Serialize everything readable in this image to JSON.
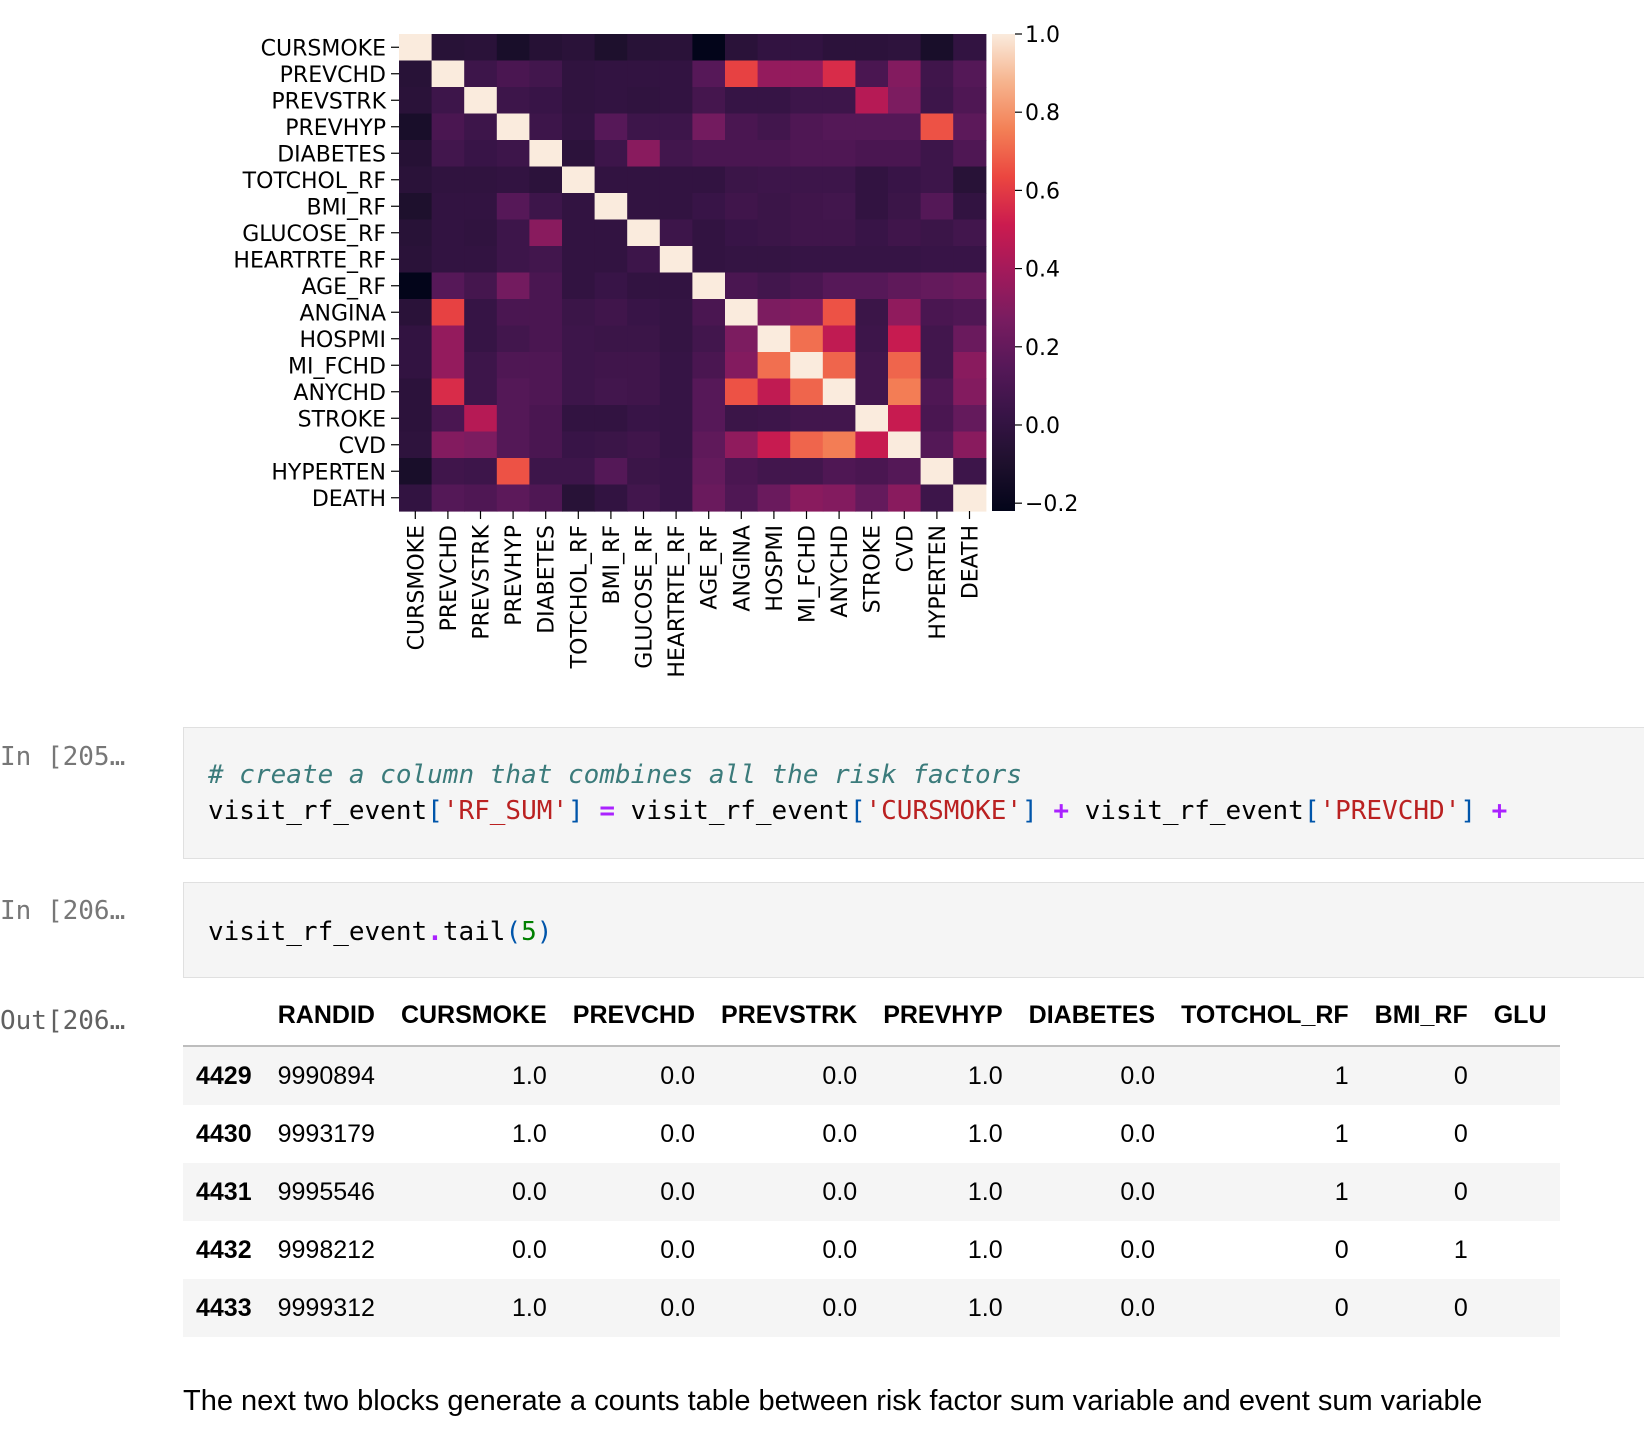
{
  "chart_data": {
    "type": "heatmap",
    "labels": [
      "CURSMOKE",
      "PREVCHD",
      "PREVSTRK",
      "PREVHYP",
      "DIABETES",
      "TOTCHOL_RF",
      "BMI_RF",
      "GLUCOSE_RF",
      "HEARTRTE_RF",
      "AGE_RF",
      "ANGINA",
      "HOSPMI",
      "MI_FCHD",
      "ANYCHD",
      "STROKE",
      "CVD",
      "HYPERTEN",
      "DEATH"
    ],
    "values": [
      [
        1.0,
        -0.05,
        -0.04,
        -0.12,
        -0.06,
        -0.04,
        -0.1,
        -0.05,
        -0.04,
        -0.22,
        -0.04,
        0.0,
        0.0,
        -0.03,
        -0.03,
        -0.02,
        -0.12,
        0.0
      ],
      [
        -0.05,
        1.0,
        0.05,
        0.1,
        0.07,
        -0.01,
        0.0,
        0.0,
        0.0,
        0.15,
        0.62,
        0.35,
        0.35,
        0.56,
        0.1,
        0.3,
        0.06,
        0.14
      ],
      [
        -0.04,
        0.05,
        1.0,
        0.05,
        0.03,
        -0.01,
        0.0,
        -0.01,
        0.0,
        0.08,
        0.02,
        0.02,
        0.05,
        0.05,
        0.45,
        0.28,
        0.05,
        0.12
      ],
      [
        -0.12,
        0.1,
        0.05,
        1.0,
        0.05,
        0.0,
        0.15,
        0.05,
        0.05,
        0.25,
        0.1,
        0.07,
        0.12,
        0.14,
        0.14,
        0.14,
        0.66,
        0.17
      ],
      [
        -0.06,
        0.07,
        0.03,
        0.05,
        1.0,
        -0.03,
        0.05,
        0.32,
        0.07,
        0.1,
        0.1,
        0.1,
        0.12,
        0.12,
        0.1,
        0.1,
        0.05,
        0.12
      ],
      [
        -0.04,
        -0.01,
        -0.01,
        0.0,
        -0.03,
        1.0,
        0.0,
        0.0,
        0.0,
        0.0,
        0.04,
        0.05,
        0.05,
        0.05,
        0.0,
        0.03,
        0.05,
        -0.05
      ],
      [
        -0.1,
        0.0,
        0.0,
        0.15,
        0.05,
        0.0,
        1.0,
        0.0,
        0.0,
        0.03,
        0.06,
        0.04,
        0.06,
        0.07,
        0.0,
        0.04,
        0.14,
        0.0
      ],
      [
        -0.05,
        0.0,
        -0.01,
        0.05,
        0.32,
        0.0,
        0.0,
        1.0,
        0.05,
        0.0,
        0.03,
        0.04,
        0.06,
        0.06,
        0.03,
        0.06,
        0.04,
        0.07
      ],
      [
        -0.04,
        0.0,
        0.0,
        0.05,
        0.07,
        0.0,
        0.0,
        0.05,
        1.0,
        0.0,
        0.01,
        0.01,
        0.02,
        0.02,
        0.02,
        0.02,
        0.03,
        0.03
      ],
      [
        -0.22,
        0.15,
        0.08,
        0.25,
        0.1,
        0.0,
        0.03,
        0.0,
        0.0,
        1.0,
        0.1,
        0.07,
        0.1,
        0.15,
        0.15,
        0.18,
        0.2,
        0.22
      ],
      [
        -0.04,
        0.62,
        0.02,
        0.1,
        0.1,
        0.04,
        0.06,
        0.03,
        0.01,
        0.1,
        1.0,
        0.28,
        0.3,
        0.66,
        0.04,
        0.34,
        0.1,
        0.12
      ],
      [
        0.0,
        0.35,
        0.02,
        0.07,
        0.1,
        0.05,
        0.04,
        0.04,
        0.01,
        0.07,
        0.28,
        1.0,
        0.72,
        0.48,
        0.05,
        0.5,
        0.07,
        0.22
      ],
      [
        0.0,
        0.35,
        0.05,
        0.12,
        0.12,
        0.05,
        0.06,
        0.06,
        0.02,
        0.1,
        0.3,
        0.72,
        1.0,
        0.7,
        0.07,
        0.7,
        0.07,
        0.32
      ],
      [
        -0.03,
        0.56,
        0.05,
        0.14,
        0.12,
        0.05,
        0.07,
        0.06,
        0.02,
        0.15,
        0.66,
        0.48,
        0.7,
        1.0,
        0.07,
        0.75,
        0.12,
        0.3
      ],
      [
        -0.03,
        0.1,
        0.45,
        0.14,
        0.1,
        0.0,
        0.0,
        0.03,
        0.02,
        0.15,
        0.04,
        0.05,
        0.07,
        0.07,
        1.0,
        0.5,
        0.1,
        0.2
      ],
      [
        -0.02,
        0.3,
        0.28,
        0.14,
        0.1,
        0.03,
        0.04,
        0.06,
        0.02,
        0.18,
        0.34,
        0.5,
        0.7,
        0.75,
        0.5,
        1.0,
        0.14,
        0.32
      ],
      [
        -0.12,
        0.06,
        0.05,
        0.66,
        0.05,
        0.05,
        0.14,
        0.04,
        0.03,
        0.2,
        0.1,
        0.07,
        0.07,
        0.12,
        0.1,
        0.14,
        1.0,
        0.05
      ],
      [
        0.0,
        0.14,
        0.12,
        0.17,
        0.12,
        -0.05,
        0.0,
        0.07,
        0.03,
        0.22,
        0.12,
        0.22,
        0.32,
        0.3,
        0.2,
        0.32,
        0.05,
        1.0
      ]
    ],
    "colorbar_ticks": [
      "1.0",
      "0.8",
      "0.6",
      "0.4",
      "0.2",
      "0.0",
      "−0.2"
    ],
    "vmin": -0.22,
    "vmax": 1.0
  },
  "cells": [
    {
      "prompt": "In [205…",
      "lines": [
        [
          {
            "t": "# create a column that combines all the risk factors",
            "c": "cm"
          }
        ],
        [
          {
            "t": "visit_rf_event"
          },
          {
            "t": "[",
            "c": "pn"
          },
          {
            "t": "'RF_SUM'",
            "c": "st"
          },
          {
            "t": "]",
            "c": "pn"
          },
          {
            "t": " "
          },
          {
            "t": "=",
            "c": "op"
          },
          {
            "t": " visit_rf_event"
          },
          {
            "t": "[",
            "c": "pn"
          },
          {
            "t": "'CURSMOKE'",
            "c": "st"
          },
          {
            "t": "]",
            "c": "pn"
          },
          {
            "t": " "
          },
          {
            "t": "+",
            "c": "op"
          },
          {
            "t": " visit_rf_event"
          },
          {
            "t": "[",
            "c": "pn"
          },
          {
            "t": "'PREVCHD'",
            "c": "st"
          },
          {
            "t": "]",
            "c": "pn"
          },
          {
            "t": " "
          },
          {
            "t": "+",
            "c": "op"
          }
        ]
      ]
    },
    {
      "prompt": "In [206…",
      "lines": [
        [
          {
            "t": "visit_rf_event"
          },
          {
            "t": ".",
            "c": "op"
          },
          {
            "t": "tail"
          },
          {
            "t": "(",
            "c": "pn"
          },
          {
            "t": "5",
            "c": "nm"
          },
          {
            "t": ")",
            "c": "pn"
          }
        ]
      ]
    }
  ],
  "output": {
    "prompt": "Out[206…",
    "columns": [
      "RANDID",
      "CURSMOKE",
      "PREVCHD",
      "PREVSTRK",
      "PREVHYP",
      "DIABETES",
      "TOTCHOL_RF",
      "BMI_RF",
      "GLU"
    ],
    "rows": [
      {
        "index": "4429",
        "cells": [
          "9990894",
          "1.0",
          "0.0",
          "0.0",
          "1.0",
          "0.0",
          "1",
          "0",
          ""
        ]
      },
      {
        "index": "4430",
        "cells": [
          "9993179",
          "1.0",
          "0.0",
          "0.0",
          "1.0",
          "0.0",
          "1",
          "0",
          ""
        ]
      },
      {
        "index": "4431",
        "cells": [
          "9995546",
          "0.0",
          "0.0",
          "0.0",
          "1.0",
          "0.0",
          "1",
          "0",
          ""
        ]
      },
      {
        "index": "4432",
        "cells": [
          "9998212",
          "0.0",
          "0.0",
          "0.0",
          "1.0",
          "0.0",
          "0",
          "1",
          ""
        ]
      },
      {
        "index": "4433",
        "cells": [
          "9999312",
          "1.0",
          "0.0",
          "0.0",
          "1.0",
          "0.0",
          "0",
          "0",
          ""
        ]
      }
    ]
  },
  "markdown": "The next two blocks generate a counts table between risk factor sum variable and event sum variable"
}
